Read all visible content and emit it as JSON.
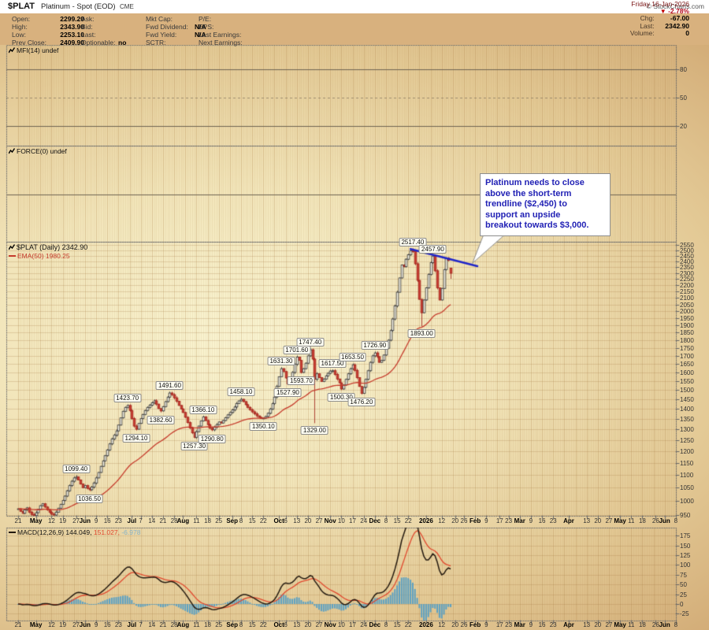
{
  "header": {
    "symbol": "$PLAT",
    "desc": "Platinum - Spot (EOD)",
    "exchange": "CME",
    "copyright": "© StockCharts.com"
  },
  "quote": {
    "col1": [
      {
        "label": "Open:",
        "value": "2299.20"
      },
      {
        "label": "High:",
        "value": "2343.90"
      },
      {
        "label": "Low:",
        "value": "2253.10"
      },
      {
        "label": "Prev Close:",
        "value": "2409.90"
      }
    ],
    "col2": [
      {
        "label": "Ask:",
        "value": ""
      },
      {
        "label": "Bid:",
        "value": ""
      },
      {
        "label": "Last:",
        "value": ""
      },
      {
        "label": "Optionable:",
        "value": "no"
      }
    ],
    "col3": [
      {
        "label": "Mkt Cap:",
        "value": ""
      },
      {
        "label": "Fwd Dividend:",
        "value": "N/A"
      },
      {
        "label": "Fwd Yield:",
        "value": "N/A"
      },
      {
        "label": "SCTR:",
        "value": ""
      }
    ],
    "col4": [
      {
        "label": "P/E:",
        "value": ""
      },
      {
        "label": "EPS:",
        "value": ""
      },
      {
        "label": "Last Earnings:",
        "value": ""
      },
      {
        "label": "Next Earnings:",
        "value": ""
      }
    ],
    "right": {
      "date": "Friday 16-Jan-2026",
      "arrow": "▼",
      "pct": "-2.78%",
      "chg_label": "Chg:",
      "chg": "-67.00",
      "last_label": "Last:",
      "last": "2342.90",
      "vol_label": "Volume:",
      "vol": "0"
    }
  },
  "panels": {
    "mfi": "MFI(14) undef",
    "force": "FORCE(0) undef",
    "main": "$PLAT (Daily) 2342.90",
    "ema": "EMA(50) 1980.25",
    "macd_name": "MACD(12,26,9) 144.049,",
    "macd_signal": "151.027,",
    "macd_hist": "-6.978"
  },
  "annotation_box": {
    "lines": [
      "Platinum needs to close",
      "above the short-term",
      "trendline ($2,450) to",
      "support an upside",
      "breakout towards $3,000."
    ]
  },
  "chart_data": {
    "type": "candlestick",
    "title": "$PLAT Platinum - Spot (EOD) CME, Daily, log scale",
    "start_date": "21-Apr-2025",
    "end_date": "16-Jan-2026",
    "closes": [
      972,
      963,
      956,
      968,
      975,
      960,
      952,
      948,
      958,
      970,
      983,
      990,
      978,
      968,
      960,
      953,
      950,
      960,
      974,
      988,
      1002,
      1018,
      1038,
      1058,
      1075,
      1088,
      1092,
      1080,
      1064,
      1050,
      1058,
      1047,
      1042,
      1052,
      1068,
      1088,
      1110,
      1135,
      1158,
      1180,
      1205,
      1232,
      1255,
      1272,
      1292,
      1320,
      1355,
      1388,
      1408,
      1418,
      1392,
      1352,
      1315,
      1300,
      1328,
      1352,
      1372,
      1392,
      1408,
      1420,
      1432,
      1442,
      1425,
      1402,
      1390,
      1412,
      1438,
      1462,
      1484,
      1475,
      1458,
      1440,
      1418,
      1400,
      1382,
      1358,
      1332,
      1306,
      1283,
      1262,
      1288,
      1315,
      1340,
      1360,
      1342,
      1322,
      1305,
      1297,
      1310,
      1322,
      1335,
      1330,
      1342,
      1356,
      1370,
      1382,
      1395,
      1410,
      1428,
      1442,
      1450,
      1438,
      1422,
      1408,
      1396,
      1385,
      1375,
      1365,
      1358,
      1352,
      1354,
      1362,
      1378,
      1400,
      1428,
      1462,
      1520,
      1575,
      1622,
      1605,
      1568,
      1535,
      1562,
      1600,
      1648,
      1692,
      1672,
      1600,
      1622,
      1655,
      1700,
      1738,
      1680,
      1560,
      1592,
      1570,
      1548,
      1562,
      1580,
      1595,
      1608,
      1610,
      1588,
      1562,
      1540,
      1506,
      1528,
      1560,
      1592,
      1622,
      1645,
      1612,
      1570,
      1520,
      1482,
      1515,
      1560,
      1610,
      1660,
      1700,
      1718,
      1695,
      1660,
      1672,
      1705,
      1748,
      1800,
      1865,
      1945,
      2040,
      2145,
      2260,
      2370,
      2355,
      2420,
      2460,
      2495,
      2490,
      2380,
      2240,
      2090,
      1990,
      2085,
      2180,
      2290,
      2390,
      2448,
      2320,
      2180,
      2085,
      2175,
      2330,
      2430,
      2409.9,
      2342.9
    ],
    "bar_overrides": {
      "26": {
        "h": 1099.4
      },
      "32": {
        "l": 1036.5
      },
      "49": {
        "h": 1423.7
      },
      "53": {
        "l": 1294.1
      },
      "64": {
        "l": 1382.6
      },
      "68": {
        "h": 1491.6
      },
      "79": {
        "l": 1257.3
      },
      "83": {
        "h": 1366.1
      },
      "87": {
        "l": 1290.8
      },
      "100": {
        "h": 1458.1
      },
      "110": {
        "l": 1350.1
      },
      "118": {
        "h": 1631.3
      },
      "121": {
        "l": 1527.9
      },
      "125": {
        "h": 1701.6
      },
      "127": {
        "l": 1593.7
      },
      "131": {
        "h": 1747.4
      },
      "133": {
        "l": 1329.0
      },
      "141": {
        "h": 1617.5
      },
      "145": {
        "l": 1500.3
      },
      "150": {
        "h": 1653.5
      },
      "154": {
        "l": 1476.2
      },
      "160": {
        "h": 1726.9
      },
      "177": {
        "h": 2517.4
      },
      "181": {
        "l": 1893.0
      },
      "186": {
        "h": 2457.9
      },
      "194": {
        "o": 2299.2,
        "h": 2343.9,
        "l": 2253.1,
        "c": 2342.9,
        "red": true
      }
    },
    "price_annotations": [
      {
        "text": "1099.40",
        "day": 26,
        "price": 1099.4,
        "pos": "above"
      },
      {
        "text": "1036.50",
        "day": 32,
        "price": 1036.5,
        "pos": "below"
      },
      {
        "text": "1423.70",
        "day": 49,
        "price": 1423.7,
        "pos": "above"
      },
      {
        "text": "1294.10",
        "day": 53,
        "price": 1294.1,
        "pos": "below"
      },
      {
        "text": "1382.60",
        "day": 64,
        "price": 1382.6,
        "pos": "below"
      },
      {
        "text": "1491.60",
        "day": 68,
        "price": 1491.6,
        "pos": "above"
      },
      {
        "text": "1257.30",
        "day": 79,
        "price": 1257.3,
        "pos": "below"
      },
      {
        "text": "1366.10",
        "day": 83,
        "price": 1366.1,
        "pos": "above"
      },
      {
        "text": "1290.80",
        "day": 87,
        "price": 1290.8,
        "pos": "below"
      },
      {
        "text": "1458.10",
        "day": 100,
        "price": 1458.1,
        "pos": "above"
      },
      {
        "text": "1350.10",
        "day": 110,
        "price": 1350.1,
        "pos": "below"
      },
      {
        "text": "1631.30",
        "day": 118,
        "price": 1631.3,
        "pos": "above"
      },
      {
        "text": "1527.90",
        "day": 121,
        "price": 1527.9,
        "pos": "below"
      },
      {
        "text": "1701.60",
        "day": 125,
        "price": 1701.6,
        "pos": "above"
      },
      {
        "text": "1593.70",
        "day": 127,
        "price": 1593.7,
        "pos": "below"
      },
      {
        "text": "1747.40",
        "day": 131,
        "price": 1747.4,
        "pos": "above"
      },
      {
        "text": "1329.00",
        "day": 133,
        "price": 1329.0,
        "pos": "below"
      },
      {
        "text": "1617.50",
        "day": 141,
        "price": 1617.5,
        "pos": "above"
      },
      {
        "text": "1500.30",
        "day": 145,
        "price": 1500.3,
        "pos": "below"
      },
      {
        "text": "1653.50",
        "day": 150,
        "price": 1653.5,
        "pos": "above"
      },
      {
        "text": "1476.20",
        "day": 154,
        "price": 1476.2,
        "pos": "below"
      },
      {
        "text": "1726.90",
        "day": 160,
        "price": 1726.9,
        "pos": "above"
      },
      {
        "text": "2517.40",
        "day": 177,
        "price": 2517.4,
        "pos": "above"
      },
      {
        "text": "1893.00",
        "day": 181,
        "price": 1893.0,
        "pos": "below"
      },
      {
        "text": "2457.90",
        "day": 186,
        "price": 2457.9,
        "pos": "above"
      }
    ],
    "x_ticks": [
      [
        "21",
        0,
        0
      ],
      [
        "May",
        8,
        1
      ],
      [
        "12",
        15,
        0
      ],
      [
        "19",
        20,
        0
      ],
      [
        "27",
        26,
        0
      ],
      [
        "Jun",
        30,
        1
      ],
      [
        "9",
        35,
        0
      ],
      [
        "16",
        40,
        0
      ],
      [
        "23",
        45,
        0
      ],
      [
        "Jul",
        51,
        1
      ],
      [
        "7",
        55,
        0
      ],
      [
        "14",
        60,
        0
      ],
      [
        "21",
        65,
        0
      ],
      [
        "28",
        70,
        0
      ],
      [
        "Aug",
        74,
        1
      ],
      [
        "11",
        80,
        0
      ],
      [
        "18",
        85,
        0
      ],
      [
        "25",
        90,
        0
      ],
      [
        "Sep",
        96,
        1
      ],
      [
        "8",
        100,
        0
      ],
      [
        "15",
        105,
        0
      ],
      [
        "22",
        110,
        0
      ],
      [
        "Oct",
        117,
        1
      ],
      [
        "6",
        120,
        0
      ],
      [
        "13",
        125,
        0
      ],
      [
        "20",
        130,
        0
      ],
      [
        "27",
        135,
        0
      ],
      [
        "Nov",
        140,
        1
      ],
      [
        "10",
        145,
        0
      ],
      [
        "17",
        150,
        0
      ],
      [
        "24",
        155,
        0
      ],
      [
        "Dec",
        160,
        1
      ],
      [
        "8",
        165,
        0
      ],
      [
        "15",
        170,
        0
      ],
      [
        "22",
        175,
        0
      ],
      [
        "2026",
        183,
        1
      ],
      [
        "12",
        190,
        0
      ],
      [
        "20",
        196,
        0
      ],
      [
        "26",
        200,
        0
      ],
      [
        "Feb",
        205,
        1
      ],
      [
        "9",
        210,
        0
      ],
      [
        "17",
        216,
        0
      ],
      [
        "23",
        220,
        0
      ],
      [
        "Mar",
        225,
        1
      ],
      [
        "9",
        230,
        0
      ],
      [
        "16",
        235,
        0
      ],
      [
        "23",
        240,
        0
      ],
      [
        "Apr",
        247,
        1
      ],
      [
        "13",
        255,
        0
      ],
      [
        "20",
        260,
        0
      ],
      [
        "27",
        265,
        0
      ],
      [
        "May",
        270,
        1
      ],
      [
        "11",
        275,
        0
      ],
      [
        "18",
        280,
        0
      ],
      [
        "26",
        286,
        0
      ],
      [
        "Jun",
        290,
        1
      ],
      [
        "8",
        295,
        0
      ]
    ],
    "price_axis": {
      "min": 950,
      "max": 2550,
      "step": 50,
      "scale": "log"
    },
    "macd_axis": {
      "min": -25,
      "max": 175,
      "step": 25
    },
    "mfi_axis_labels": [
      80,
      50,
      20
    ],
    "indicators": {
      "ema_period": 50,
      "macd_params": [
        12,
        26,
        9
      ]
    },
    "trendline": {
      "day1": 176,
      "price1": 2512,
      "day2": 206,
      "price2": 2360,
      "color": "#2026c8"
    },
    "colors": {
      "candle_up_fill": "#fffdf0",
      "candle_up_stroke": "#3f3f3f",
      "candle_down_fill": "#cb3a30",
      "candle_down_stroke": "#a32a20",
      "ema": "#c53b2c",
      "macd_line": "#241a10",
      "macd_signal": "#e0482e",
      "macd_hist": "#4e9cc8",
      "grid": "#a5793f",
      "ref_line": "#6e6352",
      "border": "#6b6b6b",
      "annotation_text": "#1f1fb4",
      "pct_red": "#b40a1e"
    }
  }
}
